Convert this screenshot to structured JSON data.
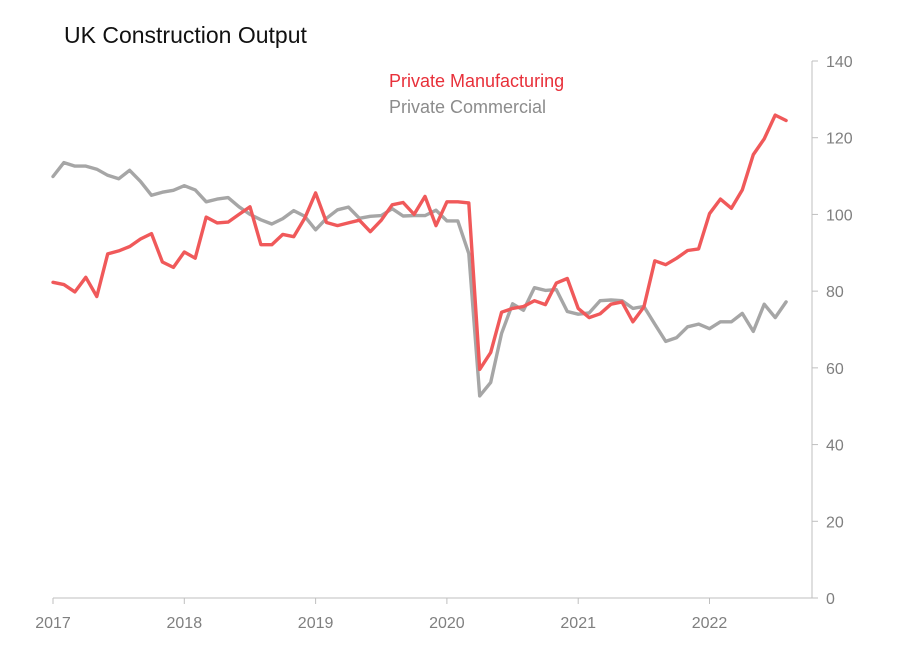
{
  "chart_data": {
    "type": "line",
    "title": "UK Construction Output",
    "xlabel": "",
    "ylabel": "",
    "x_ticks": [
      "2017",
      "2018",
      "2019",
      "2020",
      "2021",
      "2022"
    ],
    "ylim": [
      0,
      140
    ],
    "y_ticks": [
      0,
      20,
      40,
      60,
      80,
      100,
      120,
      140
    ],
    "y_axis_position": "right",
    "grid": false,
    "legend_position": "top-center",
    "x_start": "2017-01",
    "series": [
      {
        "name": "Private Manufacturing",
        "color": "#f0595a",
        "values": [
          82.3,
          81.7,
          79.8,
          83.6,
          78.6,
          89.7,
          90.5,
          91.6,
          93.6,
          95.0,
          87.6,
          86.2,
          90.2,
          88.6,
          99.3,
          97.8,
          98.0,
          100.0,
          102.0,
          92.1,
          92.1,
          94.8,
          94.2,
          99.0,
          105.6,
          97.9,
          97.1,
          97.8,
          98.5,
          95.5,
          98.5,
          102.5,
          103.1,
          100.0,
          104.7,
          97.1,
          103.3,
          103.3,
          103.0,
          59.6,
          64.0,
          74.5,
          75.5,
          76.0,
          77.5,
          76.5,
          82.1,
          83.3,
          75.5,
          73.1,
          74.1,
          76.6,
          77.2,
          72.0,
          75.9,
          87.9,
          86.9,
          88.6,
          90.6,
          91.0,
          100.2,
          104.0,
          101.6,
          106.4,
          115.6,
          119.7,
          125.9,
          124.5
        ]
      },
      {
        "name": "Private Commercial",
        "color": "#a6a6a6",
        "values": [
          109.9,
          113.5,
          112.6,
          112.6,
          111.8,
          110.2,
          109.3,
          111.5,
          108.6,
          105.0,
          105.8,
          106.3,
          107.5,
          106.4,
          103.3,
          104.0,
          104.4,
          102.0,
          100.0,
          98.6,
          97.5,
          98.9,
          101.0,
          99.5,
          96.0,
          99.0,
          101.2,
          101.9,
          99.0,
          99.5,
          99.7,
          101.5,
          99.6,
          99.7,
          99.7,
          101.1,
          98.3,
          98.3,
          89.8,
          52.7,
          56.2,
          69.0,
          76.7,
          75.0,
          80.9,
          80.2,
          80.4,
          74.7,
          74.0,
          74.3,
          77.5,
          77.7,
          77.5,
          75.5,
          76.0,
          71.4,
          66.9,
          67.9,
          70.7,
          71.4,
          70.2,
          72.0,
          72.0,
          74.2,
          69.5,
          76.6,
          73.1,
          77.2
        ]
      }
    ]
  }
}
